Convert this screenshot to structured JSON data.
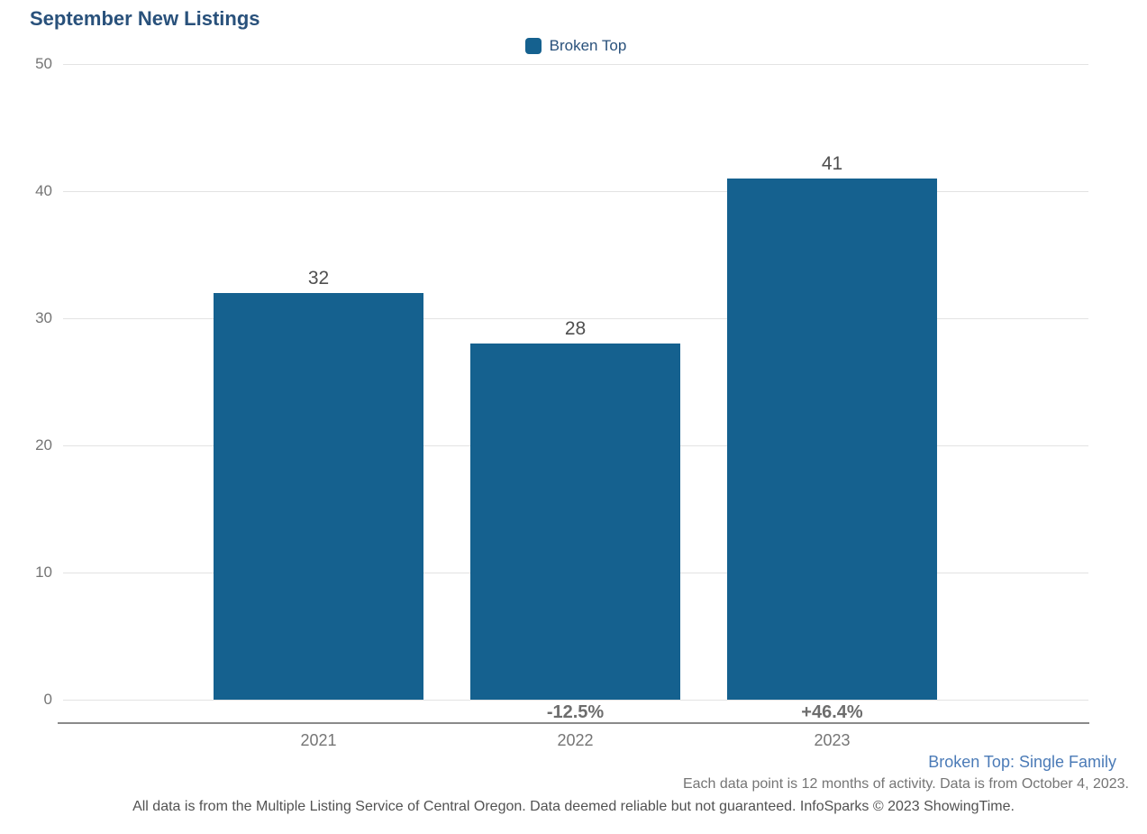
{
  "title": "September New Listings",
  "legend": {
    "label": "Broken Top",
    "swatch_color": "#15618f"
  },
  "chart_data": {
    "type": "bar",
    "title": "September New Listings",
    "series_name": "Broken Top",
    "categories": [
      "2021",
      "2022",
      "2023"
    ],
    "values": [
      32,
      28,
      41
    ],
    "value_labels": [
      "32",
      "28",
      "41"
    ],
    "change_labels": [
      "",
      "-12.5%",
      "+46.4%"
    ],
    "xlabel": "",
    "ylabel": "",
    "ylim": [
      0,
      50
    ],
    "yticks": [
      0,
      10,
      20,
      30,
      40,
      50
    ],
    "grid": true,
    "legend_position": "top-center",
    "bar_color": "#15618f"
  },
  "footer": {
    "series_description": "Broken Top: Single Family",
    "data_note": "Each data point is 12 months of activity. Data is from October 4, 2023.",
    "disclaimer": "All data is from the Multiple Listing Service of Central Oregon. Data deemed reliable but not guaranteed. InfoSparks © 2023 ShowingTime."
  }
}
